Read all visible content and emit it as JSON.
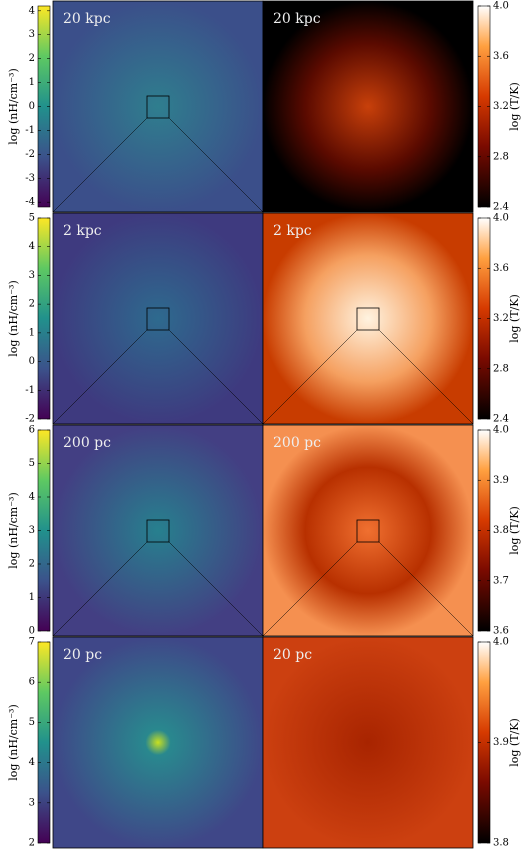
{
  "rows": [
    {
      "density": {
        "scale": "20 kpc",
        "label": "log (nH/cm⁻³)",
        "lim": [
          -4.2,
          4.2
        ],
        "ticks": [
          -4,
          -3,
          -2,
          -1,
          0,
          1,
          2,
          3,
          4
        ]
      },
      "temperature": {
        "scale": "20 kpc",
        "label": "log (T/K)",
        "lim": [
          2.4,
          4.0
        ],
        "ticks": [
          2.4,
          2.8,
          3.2,
          3.6,
          {
            "value": 4,
            "label": "4.0"
          }
        ]
      }
    },
    {
      "density": {
        "scale": "2 kpc",
        "label": "log (nH/cm⁻³)",
        "lim": [
          -2,
          5
        ],
        "ticks": [
          -2,
          -1,
          0,
          1,
          2,
          3,
          4,
          5
        ]
      },
      "temperature": {
        "scale": "2 kpc",
        "label": "log (T/K)",
        "lim": [
          2.4,
          4.0
        ],
        "ticks": [
          2.4,
          2.8,
          3.2,
          3.6,
          {
            "value": 4,
            "label": "4.0"
          }
        ]
      }
    },
    {
      "density": {
        "scale": "200 pc",
        "label": "log (nH/cm⁻³)",
        "lim": [
          0,
          6
        ],
        "ticks": [
          0,
          1,
          2,
          3,
          4,
          5,
          6
        ]
      },
      "temperature": {
        "scale": "200 pc",
        "label": "log (T/K)",
        "lim": [
          3.6,
          4.0
        ],
        "ticks": [
          3.6,
          3.7,
          3.8,
          3.9,
          {
            "value": 4,
            "label": "4.0"
          }
        ]
      }
    },
    {
      "density": {
        "scale": "20 pc",
        "label": "log (nH/cm⁻³)",
        "lim": [
          2,
          7
        ],
        "ticks": [
          2,
          3,
          4,
          5,
          6,
          7
        ]
      },
      "temperature": {
        "scale": "20 pc",
        "label": "log (T/K)",
        "lim": [
          3.8,
          4.0
        ],
        "ticks": [
          3.8,
          3.9,
          {
            "value": 4,
            "label": "4.0"
          }
        ]
      }
    }
  ]
}
